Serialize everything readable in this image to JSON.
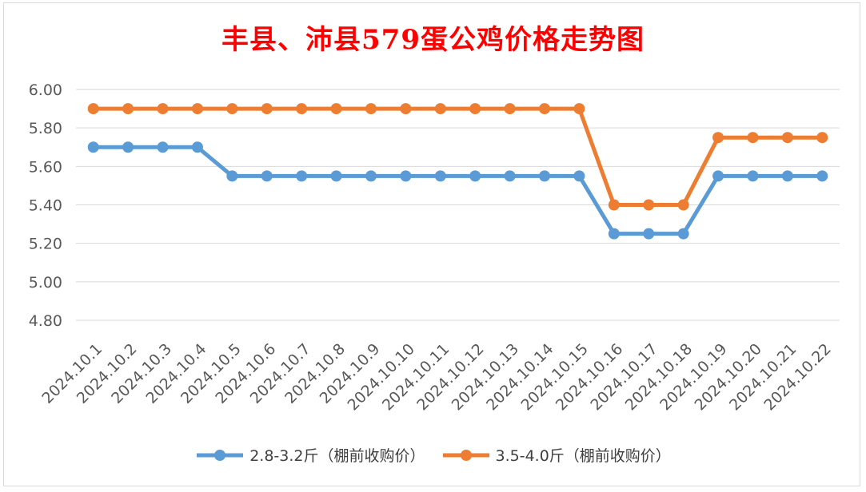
{
  "chart_data": {
    "type": "line",
    "title": "丰县、沛县579蛋公鸡价格走势图",
    "categories": [
      "2024.10.1",
      "2024.10.2",
      "2024.10.3",
      "2024.10.4",
      "2024.10.5",
      "2024.10.6",
      "2024.10.7",
      "2024.10.8",
      "2024.10.9",
      "2024.10.10",
      "2024.10.11",
      "2024.10.12",
      "2024.10.13",
      "2024.10.14",
      "2024.10.15",
      "2024.10.16",
      "2024.10.17",
      "2024.10.18",
      "2024.10.19",
      "2024.10.20",
      "2024.10.21",
      "2024.10.22"
    ],
    "series": [
      {
        "name": "2.8-3.2斤（棚前收购价）",
        "color": "#5b9bd5",
        "values": [
          5.7,
          5.7,
          5.7,
          5.7,
          5.55,
          5.55,
          5.55,
          5.55,
          5.55,
          5.55,
          5.55,
          5.55,
          5.55,
          5.55,
          5.55,
          5.25,
          5.25,
          5.25,
          5.55,
          5.55,
          5.55,
          5.55
        ]
      },
      {
        "name": "3.5-4.0斤（棚前收购价）",
        "color": "#ed7d31",
        "values": [
          5.9,
          5.9,
          5.9,
          5.9,
          5.9,
          5.9,
          5.9,
          5.9,
          5.9,
          5.9,
          5.9,
          5.9,
          5.9,
          5.9,
          5.9,
          5.4,
          5.4,
          5.4,
          5.75,
          5.75,
          5.75,
          5.75
        ]
      }
    ],
    "ylim": [
      4.8,
      6.0
    ],
    "yticks": [
      "4.80",
      "5.00",
      "5.20",
      "5.40",
      "5.60",
      "5.80",
      "6.00"
    ],
    "xlabel": "",
    "ylabel": "",
    "grid": true,
    "legend_position": "bottom"
  }
}
